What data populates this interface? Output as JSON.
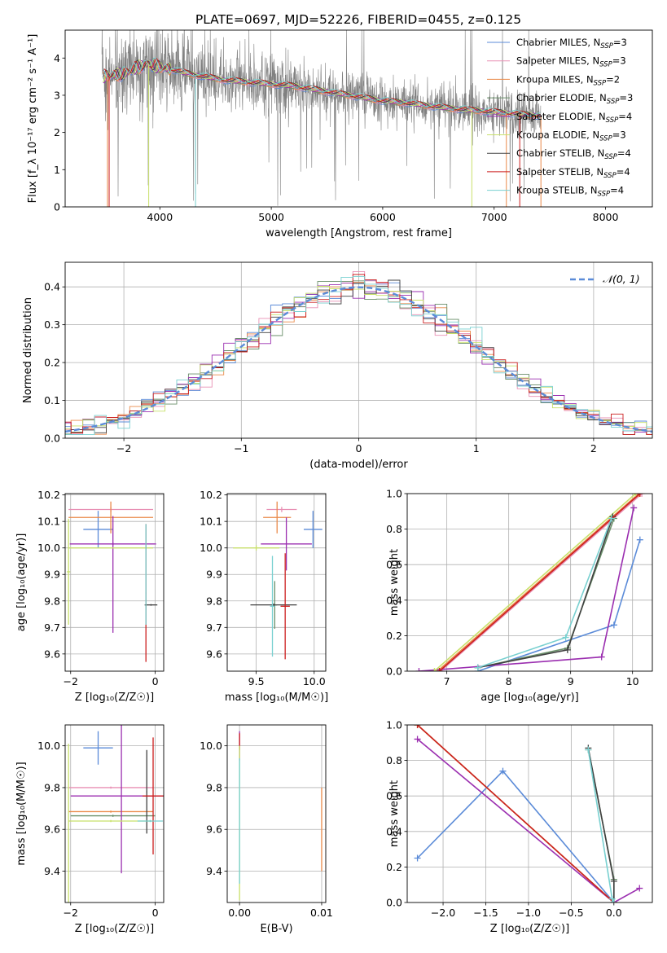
{
  "colors": {
    "chabrier_miles": "#5b8bd8",
    "salpeter_miles": "#e88fb3",
    "kroupa_miles": "#ea8a4a",
    "chabrier_elodie": "#6a8f6a",
    "salpeter_elodie": "#9b2fb0",
    "kroupa_elodie": "#c8e06a",
    "chabrier_stelib": "#404040",
    "salpeter_stelib": "#cc1f1f",
    "kroupa_stelib": "#78d0d0",
    "data": "#808080",
    "gauss": "#5b8bd8"
  },
  "chart_data": [
    {
      "id": "spectrum",
      "type": "line",
      "title": "PLATE=0697, MJD=52226, FIBERID=0455, z=0.125",
      "xlabel": "wavelength [Angstrom, rest frame]",
      "ylabel": "Flux [f_λ 10⁻¹⁷ erg cm⁻² s⁻¹ A⁻¹]",
      "xlim": [
        3150,
        8420
      ],
      "ylim": [
        0,
        4.75
      ],
      "xticks": [
        "4000",
        "5000",
        "6000",
        "7000",
        "8000"
      ],
      "yticks": [
        "0",
        "1",
        "2",
        "3",
        "4"
      ],
      "legend_position": "right",
      "legend": [
        {
          "label": "Chabrier MILES, N",
          "sub": "SSP",
          "tail": "=3",
          "color": "chabrier_miles"
        },
        {
          "label": "Salpeter MILES, N",
          "sub": "SSP",
          "tail": "=3",
          "color": "salpeter_miles"
        },
        {
          "label": "Kroupa MILES, N",
          "sub": "SSP",
          "tail": "=2",
          "color": "kroupa_miles"
        },
        {
          "label": "Chabrier ELODIE, N",
          "sub": "SSP",
          "tail": "=3",
          "color": "chabrier_elodie"
        },
        {
          "label": "Salpeter ELODIE, N",
          "sub": "SSP",
          "tail": "=4",
          "color": "salpeter_elodie"
        },
        {
          "label": "Kroupa ELODIE, N",
          "sub": "SSP",
          "tail": "=3",
          "color": "kroupa_elodie"
        },
        {
          "label": "Chabrier STELIB, N",
          "sub": "SSP",
          "tail": "=4",
          "color": "chabrier_stelib"
        },
        {
          "label": "Salpeter STELIB, N",
          "sub": "SSP",
          "tail": "=4",
          "color": "salpeter_stelib"
        },
        {
          "label": "Kroupa STELIB, N",
          "sub": "SSP",
          "tail": "=4",
          "color": "kroupa_stelib"
        }
      ],
      "continuum": {
        "x": [
          3500,
          3600,
          3700,
          3800,
          3900,
          4000,
          4100,
          4200,
          4300,
          4400,
          4500,
          4600,
          4700,
          4800,
          5000,
          5200,
          5400,
          5600,
          5800,
          6000,
          6200,
          6400,
          6600,
          6800,
          7000,
          7200,
          7400
        ],
        "y": [
          3.5,
          3.55,
          3.6,
          3.75,
          3.85,
          3.75,
          3.7,
          3.62,
          3.55,
          3.5,
          3.45,
          3.4,
          3.38,
          3.35,
          3.3,
          3.25,
          3.15,
          3.05,
          2.95,
          2.85,
          2.8,
          2.72,
          2.65,
          2.6,
          2.55,
          2.5,
          2.45
        ]
      }
    },
    {
      "id": "residuals",
      "type": "line",
      "xlabel": "(data-model)/error",
      "ylabel": "Normed distribution",
      "xlim": [
        -2.5,
        2.5
      ],
      "ylim": [
        0,
        0.465
      ],
      "xticks": [
        "−2",
        "−1",
        "0",
        "1",
        "2"
      ],
      "yticks": [
        "0.0",
        "0.1",
        "0.2",
        "0.3",
        "0.4"
      ],
      "grid": true,
      "legend": [
        {
          "label": "𝒩(0, 1)",
          "color": "gauss",
          "style": "dashed"
        }
      ],
      "bin_width": 0.1
    },
    {
      "id": "age-vs-z",
      "type": "errorbar",
      "xlabel": "Z [log₁₀(Z/Z☉)]",
      "ylabel": "age  [log₁₀(age/yr)]",
      "xlim": [
        -2.13,
        0.2
      ],
      "ylim": [
        9.535,
        10.205
      ],
      "xticks": [
        "−2",
        "0"
      ],
      "yticks": [
        "9.6",
        "9.7",
        "9.8",
        "9.9",
        "10.0",
        "10.1",
        "10.2"
      ],
      "grid": true,
      "points": [
        {
          "model": "chabrier_miles",
          "x": -1.35,
          "xerr": 0.35,
          "y": 10.07,
          "yerr": 0.07
        },
        {
          "model": "salpeter_miles",
          "x": -1.05,
          "xerr": 1.0,
          "y": 10.145,
          "yerr": 0.01
        },
        {
          "model": "kroupa_miles",
          "x": -1.05,
          "xerr": 1.0,
          "y": 10.115,
          "yerr": 0.06
        },
        {
          "model": "chabrier_elodie",
          "x": -0.22,
          "xerr": 0.02,
          "y": 9.785,
          "yerr": 0.02
        },
        {
          "model": "salpeter_elodie",
          "x": -1.0,
          "xerr": 1.02,
          "y": 10.015,
          "yerr": 0.005,
          "y2": 9.9,
          "y2err": 0.22
        },
        {
          "model": "kroupa_elodie",
          "x": -2.05,
          "xerr": 0.04,
          "y": 9.91,
          "yerr": 0.2,
          "hx": -1.05,
          "hxerr": 1.0,
          "hy": 10.0
        },
        {
          "model": "chabrier_stelib",
          "x": -0.1,
          "xerr": 0.15,
          "y": 9.785,
          "yerr": 0.003
        },
        {
          "model": "salpeter_stelib",
          "x": -0.22,
          "xerr": 0.01,
          "y": 9.83,
          "yerr": 0.26
        },
        {
          "model": "kroupa_stelib",
          "x": -0.22,
          "xerr": 0.01,
          "y": 9.9,
          "yerr": 0.19
        }
      ]
    },
    {
      "id": "age-vs-mass",
      "type": "errorbar",
      "xlabel": "mass [log₁₀(M/M☉)]",
      "ylabel": "",
      "xlim": [
        9.25,
        10.1
      ],
      "ylim": [
        9.535,
        10.205
      ],
      "xticks": [
        "9.5",
        "10.0"
      ],
      "yticks": [
        "9.6",
        "9.7",
        "9.8",
        "9.9",
        "10.0",
        "10.1",
        "10.2"
      ],
      "grid": true,
      "points": [
        {
          "model": "chabrier_miles",
          "x": 9.99,
          "xerr": 0.08,
          "y": 10.07,
          "yerr": 0.07
        },
        {
          "model": "salpeter_miles",
          "x": 9.72,
          "xerr": 0.13,
          "y": 10.145,
          "yerr": 0.01
        },
        {
          "model": "kroupa_miles",
          "x": 9.68,
          "xerr": 0.12,
          "y": 10.115,
          "yerr": 0.06
        },
        {
          "model": "chabrier_elodie",
          "x": 9.66,
          "xerr": 0.02,
          "y": 9.785,
          "yerr": 0.09
        },
        {
          "model": "salpeter_elodie",
          "x": 9.76,
          "xerr": 0.22,
          "y": 10.015,
          "yerr": 0.1
        },
        {
          "model": "kroupa_elodie",
          "x": 9.5,
          "xerr": 0.2,
          "y": 10.0,
          "yerr": 0.01
        },
        {
          "model": "chabrier_stelib",
          "x": 9.65,
          "xerr": 0.2,
          "y": 9.785,
          "yerr": 0.005
        },
        {
          "model": "salpeter_stelib",
          "x": 9.75,
          "xerr": 0.04,
          "y": 9.78,
          "yerr": 0.2
        },
        {
          "model": "kroupa_stelib",
          "x": 9.64,
          "xerr": 0.02,
          "y": 9.78,
          "yerr": 0.19
        }
      ]
    },
    {
      "id": "mass-weight-vs-age",
      "type": "line",
      "xlabel": "age  [log₁₀(age/yr)]",
      "ylabel": "mass weight",
      "xlim": [
        6.36,
        10.32
      ],
      "ylim": [
        0,
        1.0
      ],
      "xticks": [
        "7",
        "8",
        "9",
        "10"
      ],
      "yticks": [
        "0.0",
        "0.2",
        "0.4",
        "0.6",
        "0.8",
        "1.0"
      ],
      "grid": true,
      "series": [
        {
          "model": "chabrier_miles",
          "x": [
            7.5,
            9.7,
            10.12
          ],
          "y": [
            0.0,
            0.26,
            0.74
          ]
        },
        {
          "model": "salpeter_miles",
          "x": [
            6.9,
            10.15
          ],
          "y": [
            0.0,
            1.0
          ]
        },
        {
          "model": "kroupa_miles",
          "x": [
            6.85,
            10.1
          ],
          "y": [
            0.0,
            1.0
          ]
        },
        {
          "model": "chabrier_elodie",
          "x": [
            7.5,
            8.95,
            9.7
          ],
          "y": [
            0.02,
            0.13,
            0.86
          ]
        },
        {
          "model": "salpeter_elodie",
          "x": [
            6.55,
            9.5,
            10.02
          ],
          "y": [
            0.0,
            0.08,
            0.92
          ]
        },
        {
          "model": "kroupa_elodie",
          "x": [
            6.8,
            10.05
          ],
          "y": [
            0.0,
            1.0
          ]
        },
        {
          "model": "chabrier_stelib",
          "x": [
            7.5,
            8.95,
            9.68
          ],
          "y": [
            0.02,
            0.12,
            0.87
          ]
        },
        {
          "model": "salpeter_stelib",
          "x": [
            6.88,
            10.12
          ],
          "y": [
            0.0,
            1.0
          ]
        },
        {
          "model": "kroupa_stelib",
          "x": [
            7.5,
            8.92,
            9.66
          ],
          "y": [
            0.02,
            0.19,
            0.86
          ]
        }
      ]
    },
    {
      "id": "mass-vs-z",
      "type": "errorbar",
      "xlabel": "Z [log₁₀(Z/Z☉)]",
      "ylabel": "mass [log₁₀(M/M☉)]",
      "xlim": [
        -2.13,
        0.2
      ],
      "ylim": [
        9.25,
        10.1
      ],
      "xticks": [
        "−2",
        "0"
      ],
      "yticks": [
        "9.4",
        "9.6",
        "9.8",
        "10.0"
      ],
      "grid": true,
      "points": [
        {
          "model": "chabrier_miles",
          "x": -1.35,
          "xerr": 0.35,
          "y": 9.99,
          "yerr": 0.08
        },
        {
          "model": "salpeter_miles",
          "x": -1.05,
          "xerr": 1.0,
          "y": 9.8,
          "yerr": 0.005
        },
        {
          "model": "kroupa_miles",
          "x": -1.05,
          "xerr": 1.0,
          "y": 9.685,
          "yerr": 0.005
        },
        {
          "model": "chabrier_elodie",
          "x": -1.0,
          "xerr": 1.0,
          "y": 9.665,
          "yerr": 0.005
        },
        {
          "model": "salpeter_elodie",
          "x": -0.8,
          "xerr": 1.2,
          "y": 9.76,
          "yerr": 0.37
        },
        {
          "model": "kroupa_elodie",
          "x": -1.05,
          "xerr": 1.0,
          "y": 9.64,
          "yerr": 0.005,
          "v_x": -2.05,
          "v_y": 9.63,
          "v_yerr": 0.38
        },
        {
          "model": "chabrier_stelib",
          "x": -0.2,
          "xerr": 0.01,
          "y": 9.78,
          "yerr": 0.2
        },
        {
          "model": "salpeter_stelib",
          "x": -0.05,
          "xerr": 0.25,
          "y": 9.76,
          "yerr": 0.28
        },
        {
          "model": "kroupa_stelib",
          "x": -0.12,
          "xerr": 0.3,
          "y": 9.64,
          "yerr": 0.005
        }
      ]
    },
    {
      "id": "mass-vs-ebv",
      "type": "errorbar",
      "xlabel": "E(B-V)",
      "ylabel": "",
      "xlim": [
        -0.0015,
        0.0105
      ],
      "ylim": [
        9.25,
        10.1
      ],
      "xticks": [
        "0.00",
        "0.01"
      ],
      "yticks": [
        "9.4",
        "9.6",
        "9.8",
        "10.0"
      ],
      "grid": true,
      "points": [
        {
          "model": "salpeter_elodie",
          "x": 0.0,
          "y": 10.0,
          "yerr": 0.07
        },
        {
          "model": "salpeter_stelib",
          "x": 0.0,
          "y": 10.02,
          "yerr": 0.04
        },
        {
          "model": "kroupa_elodie",
          "x": 0.0,
          "y": 9.63,
          "yerr": 0.37
        },
        {
          "model": "kroupa_stelib",
          "x": 0.0,
          "y": 9.64,
          "yerr": 0.3
        },
        {
          "model": "kroupa_miles",
          "x": 0.01,
          "y": 9.6,
          "yerr": 0.2
        }
      ]
    },
    {
      "id": "mass-weight-vs-z",
      "type": "line",
      "xlabel": "Z [log₁₀(Z/Z☉)]",
      "ylabel": "mass weight",
      "xlim": [
        -2.42,
        0.45
      ],
      "ylim": [
        0,
        1.0
      ],
      "xticks": [
        "−2.0",
        "−1.5",
        "−1.0",
        "−0.5",
        "0.0"
      ],
      "yticks": [
        "0.0",
        "0.2",
        "0.4",
        "0.6",
        "0.8",
        "1.0"
      ],
      "grid": true,
      "series": [
        {
          "model": "chabrier_miles",
          "x": [
            -2.3,
            -1.3,
            0.0
          ],
          "y": [
            0.25,
            0.74,
            0.0
          ]
        },
        {
          "model": "salpeter_miles",
          "x": [
            -2.3,
            0.0
          ],
          "y": [
            1.0,
            0.0
          ]
        },
        {
          "model": "kroupa_miles",
          "x": [
            -2.3,
            0.0
          ],
          "y": [
            1.0,
            0.0
          ]
        },
        {
          "model": "chabrier_elodie",
          "x": [
            -0.3,
            0.0,
            0.0
          ],
          "y": [
            0.86,
            0.13,
            0.0
          ]
        },
        {
          "model": "salpeter_elodie",
          "x": [
            -2.3,
            0.0,
            0.3
          ],
          "y": [
            0.92,
            0.0,
            0.08
          ]
        },
        {
          "model": "kroupa_elodie",
          "x": [
            -2.3,
            0.0
          ],
          "y": [
            1.0,
            0.0
          ]
        },
        {
          "model": "chabrier_stelib",
          "x": [
            -0.3,
            0.0,
            0.0
          ],
          "y": [
            0.87,
            0.12,
            0.0
          ]
        },
        {
          "model": "salpeter_stelib",
          "x": [
            -2.3,
            0.0
          ],
          "y": [
            1.0,
            0.0
          ]
        },
        {
          "model": "kroupa_stelib",
          "x": [
            -0.3,
            -0.02,
            0.0
          ],
          "y": [
            0.86,
            0.02,
            0.0
          ]
        }
      ]
    }
  ]
}
